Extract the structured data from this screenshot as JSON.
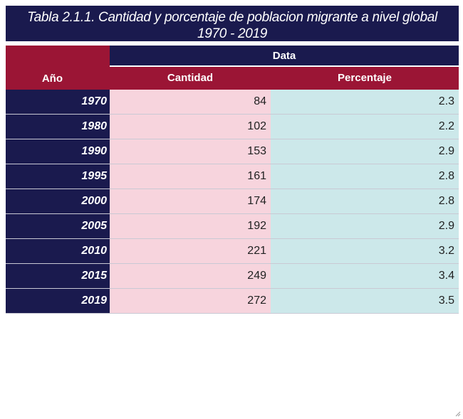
{
  "title": {
    "line1": "Tabla 2.1.1. Cantidad y porcentaje de poblacion migrante a nivel global",
    "line2": "1970 - 2019"
  },
  "header": {
    "group_label": "Data",
    "year_label": "Año",
    "cantidad_label": "Cantidad",
    "porcentaje_label": "Percentaje"
  },
  "rows": [
    {
      "year": "1970",
      "cantidad": "84",
      "porcentaje": "2.3"
    },
    {
      "year": "1980",
      "cantidad": "102",
      "porcentaje": "2.2"
    },
    {
      "year": "1990",
      "cantidad": "153",
      "porcentaje": "2.9"
    },
    {
      "year": "1995",
      "cantidad": "161",
      "porcentaje": "2.8"
    },
    {
      "year": "2000",
      "cantidad": "174",
      "porcentaje": "2.8"
    },
    {
      "year": "2005",
      "cantidad": "192",
      "porcentaje": "2.9"
    },
    {
      "year": "2010",
      "cantidad": "221",
      "porcentaje": "3.2"
    },
    {
      "year": "2015",
      "cantidad": "249",
      "porcentaje": "3.4"
    },
    {
      "year": "2019",
      "cantidad": "272",
      "porcentaje": "3.5"
    }
  ],
  "colors": {
    "navy": "#1a1a4e",
    "crimson": "#9b1535",
    "pink": "#f7d4dd",
    "cyan": "#cce8ea"
  },
  "icons": {
    "resize": "resize-grip-icon"
  }
}
